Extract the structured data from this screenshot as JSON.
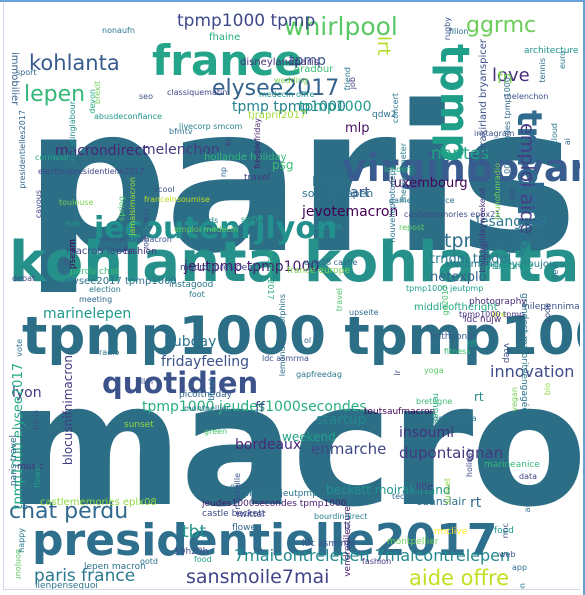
{
  "words": [
    {
      "t": "paris",
      "c": "#2b6e86"
    },
    {
      "t": "macron",
      "c": "#2b6e86"
    },
    {
      "t": "kohlanta kohlanta",
      "c": "#26918b"
    },
    {
      "t": "tpmp1000 tpmp1000",
      "c": "#2b6e86"
    },
    {
      "t": "presidentielle2017",
      "c": "#2d6f8c"
    },
    {
      "t": "france",
      "c": "#24a489"
    },
    {
      "t": "quotidien",
      "c": "#3b528b"
    },
    {
      "t": "jecoutenrjlyon",
      "c": "#22908c"
    },
    {
      "t": "virginboyard",
      "c": "#375c8d"
    },
    {
      "t": "tpmp",
      "c": "#1f9e89"
    },
    {
      "t": "trndnl",
      "c": "#2f6b8e"
    },
    {
      "t": "whirlpool",
      "c": "#5ac864"
    },
    {
      "t": "ggrmc",
      "c": "#6ccd5a"
    },
    {
      "t": "lepen",
      "c": "#35b779"
    },
    {
      "t": "elysee2017",
      "c": "#33638d"
    },
    {
      "t": "kohlanta",
      "c": "#375b8d"
    },
    {
      "t": "sansmoile7mai",
      "c": "#414487"
    },
    {
      "t": "chat perdu",
      "c": "#31688e"
    },
    {
      "t": "tpmp1000",
      "c": "#2e6e8e"
    },
    {
      "t": "emploi aide",
      "c": "#433e85"
    },
    {
      "t": "love",
      "c": "#472d7b"
    },
    {
      "t": "aide offre",
      "c": "#c2df23"
    },
    {
      "t": "paris france",
      "c": "#2a788e"
    },
    {
      "t": "tpmp1000 tpmp",
      "c": "#3e4989"
    },
    {
      "t": "lrt",
      "c": "#b5de2b"
    },
    {
      "t": "tbt",
      "c": "#1f958b"
    },
    {
      "t": "7maicontrelepen 7maicontrelepen",
      "c": "#23888e"
    },
    {
      "t": "fn",
      "c": "#7ad151"
    },
    {
      "t": "dupontaignan",
      "c": "#453781"
    },
    {
      "t": "enmarche",
      "c": "#3f4788"
    },
    {
      "t": "innovation",
      "c": "#3e4c8a"
    },
    {
      "t": "rt",
      "c": "#21908d"
    },
    {
      "t": "nantes",
      "c": "#21a685"
    },
    {
      "t": "marinelepen",
      "c": "#1f9a8a"
    },
    {
      "t": "jeutpmp tpmp1000",
      "c": "#481a6c"
    },
    {
      "t": "lyon",
      "c": "#443a83"
    },
    {
      "t": "hubday",
      "c": "#2c738e"
    },
    {
      "t": "fridayfeeling",
      "c": "#3b528b"
    },
    {
      "t": "tpmp tpmp1000",
      "c": "#25838e"
    },
    {
      "t": "tpmp1000",
      "c": "#1f9a8a"
    },
    {
      "t": "tpmp1000 jeudes1000secondes",
      "c": "#29af7f"
    },
    {
      "t": "startup",
      "c": "#24868e"
    },
    {
      "t": "bordeaux",
      "c": "#482878"
    },
    {
      "t": "insoumi",
      "c": "#46307e"
    },
    {
      "t": "tpmp",
      "c": "#3a548c"
    },
    {
      "t": "lesanges9",
      "c": "#2a788e"
    },
    {
      "t": "rt",
      "c": "#31688e"
    },
    {
      "t": "macrondirect",
      "c": "#482475"
    },
    {
      "t": "melenchon",
      "c": "#453882"
    },
    {
      "t": "mlp",
      "c": "#471063"
    },
    {
      "t": "lmsa",
      "c": "#2c728e"
    },
    {
      "t": "art",
      "c": "#38588c"
    },
    {
      "t": "luxembourg",
      "c": "#450559"
    },
    {
      "t": "netexplo",
      "c": "#34618d"
    },
    {
      "t": "trndnl trndnl",
      "c": "#2a768e"
    },
    {
      "t": "psg",
      "c": "#3dbc74"
    },
    {
      "t": "jevotemacron",
      "c": "#440154"
    },
    {
      "t": "ff",
      "c": "#3b528b"
    },
    {
      "t": "blocusnifnimacron",
      "c": "#433d84"
    },
    {
      "t": "weekend",
      "c": "#1fa088"
    },
    {
      "t": "tpmp1000 elysee2017",
      "c": "#22a785"
    },
    {
      "t": "macron lepen",
      "c": "#3e4a89"
    },
    {
      "t": "beckett moirakirland",
      "c": "#20928c"
    },
    {
      "t": "sortonslepen",
      "c": "#2d708e"
    },
    {
      "t": "lille",
      "c": "#46337f"
    },
    {
      "t": "cdanslair",
      "c": "#2e6f8e"
    },
    {
      "t": "alacampagneyatoujours",
      "c": "#277f8e"
    },
    {
      "t": "middleoftheright",
      "c": "#22a884"
    },
    {
      "t": "lt",
      "c": "#3b518b"
    },
    {
      "t": "immobilier",
      "c": "#34608d"
    },
    {
      "t": "elysee2017 tpmp1000",
      "c": "#2c718e"
    },
    {
      "t": "perdu chat",
      "c": "#3aba76"
    },
    {
      "t": "disneylandparis",
      "c": "#46307e"
    },
    {
      "t": "fhaine",
      "c": "#27ad81"
    },
    {
      "t": "moirakirland bryanspicer",
      "c": "#3b528b"
    },
    {
      "t": "castlememories eplx08",
      "c": "#90d743"
    },
    {
      "t": "jeudes1000secondes tpmp1000",
      "c": "#48196b"
    },
    {
      "t": "castle beckett",
      "c": "#3e4989"
    },
    {
      "t": "tpmpjeu jeutpmp",
      "c": "#2c738e"
    },
    {
      "t": "twitter",
      "c": "#3f4889"
    },
    {
      "t": "vendredilecture",
      "c": "#481f70"
    },
    {
      "t": "bourdindirect",
      "c": "#27808e"
    },
    {
      "t": "montpellier",
      "c": "#6ece58"
    },
    {
      "t": "rmclive",
      "c": "#fde725"
    },
    {
      "t": "food",
      "c": "#1f9e89"
    },
    {
      "t": "ldc asmrma",
      "c": "#3b528b"
    },
    {
      "t": "flower",
      "c": "#31688e"
    },
    {
      "t": "oradour",
      "c": "#3dbc74"
    },
    {
      "t": "qdw2",
      "c": "#2d708e"
    },
    {
      "t": "tjrapril2017",
      "c": "#a0da39"
    },
    {
      "t": "hollande holiday",
      "c": "#31b57b"
    },
    {
      "t": "travel",
      "c": "#453781"
    },
    {
      "t": "pseam",
      "c": "#440154"
    },
    {
      "t": "fashion",
      "c": "#46327e"
    },
    {
      "t": "macronpresident",
      "c": "#3e4a89"
    },
    {
      "t": "entreprise",
      "c": "#1fa188"
    },
    {
      "t": "imtheone",
      "c": "#365d8d"
    },
    {
      "t": "toutsaufmacron",
      "c": "#440154"
    },
    {
      "t": "sunset",
      "c": "#8fd744"
    },
    {
      "t": "paris travel",
      "c": "#31688e"
    },
    {
      "t": "music",
      "c": "#46327e"
    },
    {
      "t": "zidane",
      "c": "#2e6e8e"
    },
    {
      "t": "ilenpensequoi",
      "c": "#2c728e"
    },
    {
      "t": "nilepennimacron",
      "c": "#3b518b"
    },
    {
      "t": "grandest majoritéengagée",
      "c": "#2a768e"
    },
    {
      "t": "vtep",
      "c": "#3e4a89"
    },
    {
      "t": "architecture",
      "c": "#20928c"
    },
    {
      "t": "marineanice",
      "c": "#35b779"
    },
    {
      "t": "picoftheday",
      "c": "#33628d"
    },
    {
      "t": "france europe",
      "c": "#7ad151"
    },
    {
      "t": "instagood",
      "c": "#2a788e"
    },
    {
      "t": "lepen macron",
      "c": "#2e6f8e"
    },
    {
      "t": "19h20h",
      "c": "#3e4c8a"
    },
    {
      "t": "ldc nujw",
      "c": "#482878"
    },
    {
      "t": "tfl",
      "c": "#21a685"
    },
    {
      "t": "photography",
      "c": "#472a7a"
    },
    {
      "t": "rennes",
      "c": "#26ad81"
    },
    {
      "t": "nonaufn",
      "c": "#2a788e"
    },
    {
      "t": "fillon",
      "c": "#2d708e"
    },
    {
      "t": "seo",
      "c": "#3b528b"
    },
    {
      "t": "devon",
      "c": "#25ab82"
    },
    {
      "t": "brexit",
      "c": "#6ccd5a"
    },
    {
      "t": "classiquematin",
      "c": "#414487"
    },
    {
      "t": "abusdeconfiance",
      "c": "#1f988b"
    },
    {
      "t": "livecorp smcom",
      "c": "#26828e"
    },
    {
      "t": "medecin offre",
      "c": "#21918c"
    },
    {
      "t": "bfmtv",
      "c": "#2c738e"
    },
    {
      "t": "wedding",
      "c": "#7ad151"
    },
    {
      "t": "freebiefriday",
      "c": "#481f70"
    },
    {
      "t": "np",
      "c": "#31688e"
    },
    {
      "t": "ia",
      "c": "#443983"
    },
    {
      "t": "scool",
      "c": "#3b528b"
    },
    {
      "t": "franceinsoumise",
      "c": "#bade28"
    },
    {
      "t": "lyonteteor",
      "c": "#3e4a89"
    },
    {
      "t": "investinglabour",
      "c": "#21918c"
    },
    {
      "t": "cornwall",
      "c": "#22a884"
    },
    {
      "t": "presidentielles2017",
      "c": "#31688e"
    },
    {
      "t": "cavous",
      "c": "#404588"
    },
    {
      "t": "toulouse",
      "c": "#7ad151"
    },
    {
      "t": "electionpresidentielle2017",
      "c": "#414487"
    },
    {
      "t": "jamaisimacron",
      "c": "#9fda3a"
    },
    {
      "t": "spring",
      "c": "#54c568"
    },
    {
      "t": "iot",
      "c": "#2d708e"
    },
    {
      "t": "selfie",
      "c": "#1fa188"
    },
    {
      "t": "eds",
      "c": "#26828e"
    },
    {
      "t": "marine2017",
      "c": "#29af7f"
    },
    {
      "t": "emploi medecin",
      "c": "#67cc5c"
    },
    {
      "t": "emmanuelmacron",
      "c": "#3b528b"
    },
    {
      "t": "gamedeinfrance",
      "c": "#2c728e"
    },
    {
      "t": "castlememories ep6x21",
      "c": "#3e4a89"
    },
    {
      "t": "sarcelle",
      "c": "#20928c"
    },
    {
      "t": "repost",
      "c": "#5ec962"
    },
    {
      "t": "ge2017",
      "c": "#4ac16d"
    },
    {
      "t": "uk",
      "c": "#2a788e"
    },
    {
      "t": "bankholidayweekend",
      "c": "#46337f"
    },
    {
      "t": "brunofunradio",
      "c": "#73d056"
    },
    {
      "t": "digital",
      "c": "#433e85"
    },
    {
      "t": "melenchon",
      "c": "#3b528b"
    },
    {
      "t": "jeudes1000secondes tpmp1000",
      "c": "#2f6c8e"
    },
    {
      "t": "friend",
      "c": "#2a788e"
    },
    {
      "t": "job",
      "c": "#453781"
    },
    {
      "t": "instagram",
      "c": "#3b528b"
    },
    {
      "t": "concert",
      "c": "#2a788e"
    },
    {
      "t": "theniouxmeter",
      "c": "#287c8e"
    },
    {
      "t": "london",
      "c": "#32b67a"
    },
    {
      "t": "nouvellephotodeprofil",
      "c": "#2c728e"
    },
    {
      "t": "lemondo endorphins",
      "c": "#2d708e"
    },
    {
      "t": "travel",
      "c": "#4ec36b"
    },
    {
      "t": "upseite",
      "c": "#2f6b8e"
    },
    {
      "t": "eplx08 castle",
      "c": "#31688e"
    },
    {
      "t": "tpmp1000 jeutpmp",
      "c": "#1fa088"
    },
    {
      "t": "live",
      "c": "#b8de29"
    },
    {
      "t": "tpmp1000 tpmp",
      "c": "#46327e"
    },
    {
      "t": "ldc asmrma",
      "c": "#3b528b"
    },
    {
      "t": "gapfreedag",
      "c": "#2a788e"
    },
    {
      "t": "bbcqt",
      "c": "#2c728e"
    },
    {
      "t": "lr",
      "c": "#404588"
    },
    {
      "t": "bretagne",
      "c": "#3dbc74"
    },
    {
      "t": "socialmedia",
      "c": "#2a788e"
    },
    {
      "t": "montpellier",
      "c": "#2d708e"
    },
    {
      "t": "marseille",
      "c": "#3b528b"
    },
    {
      "t": "oradour",
      "c": "#31688e"
    },
    {
      "t": "holiday",
      "c": "#3e4a89"
    },
    {
      "t": "sunset",
      "c": "#8fd744"
    },
    {
      "t": "lyon",
      "c": "#2a788e"
    },
    {
      "t": "art",
      "c": "#31688e"
    },
    {
      "t": "rmc",
      "c": "#3b528b"
    },
    {
      "t": "fashion",
      "c": "#46327e"
    },
    {
      "t": "ootd",
      "c": "#2c728e"
    },
    {
      "t": "food",
      "c": "#1f9e89"
    },
    {
      "t": "bonjour",
      "c": "#5ec962"
    },
    {
      "t": "happy",
      "c": "#2a788e"
    },
    {
      "t": "news",
      "c": "#31688e"
    },
    {
      "t": "flower",
      "c": "#1fa088"
    },
    {
      "t": "paris",
      "c": "#3b528b"
    },
    {
      "t": "vote",
      "c": "#2d708e"
    },
    {
      "t": "debat",
      "c": "#404588"
    },
    {
      "t": "election",
      "c": "#2a788e"
    },
    {
      "t": "meeting",
      "c": "#31688e"
    },
    {
      "t": "tv",
      "c": "#3e4a89"
    },
    {
      "t": "radio",
      "c": "#2c728e"
    },
    {
      "t": "film",
      "c": "#3b528b"
    },
    {
      "t": "foot",
      "c": "#2a788e"
    },
    {
      "t": "ol",
      "c": "#31688e"
    },
    {
      "t": "om",
      "c": "#3e4a89"
    },
    {
      "t": "ligue1",
      "c": "#2c728e"
    },
    {
      "t": "euro",
      "c": "#2a788e"
    },
    {
      "t": "sport",
      "c": "#31688e"
    },
    {
      "t": "rugby",
      "c": "#3b528b"
    },
    {
      "t": "tennis",
      "c": "#2d708e"
    },
    {
      "t": "run",
      "c": "#1fa088"
    },
    {
      "t": "fitness",
      "c": "#3dbc74"
    },
    {
      "t": "yoga",
      "c": "#5ec962"
    },
    {
      "t": "bio",
      "c": "#90d743"
    },
    {
      "t": "vegan",
      "c": "#73d056"
    },
    {
      "t": "green",
      "c": "#4ac16d"
    },
    {
      "t": "eco",
      "c": "#2a788e"
    },
    {
      "t": "tech",
      "c": "#31688e"
    },
    {
      "t": "web",
      "c": "#3b528b"
    },
    {
      "t": "app",
      "c": "#2d708e"
    },
    {
      "t": "data",
      "c": "#404588"
    },
    {
      "t": "cloud",
      "c": "#2a788e"
    },
    {
      "t": "ai",
      "c": "#31688e"
    },
    {
      "t": "code",
      "c": "#3e4a89"
    },
    {
      "t": "dev",
      "c": "#2c728e"
    }
  ]
}
